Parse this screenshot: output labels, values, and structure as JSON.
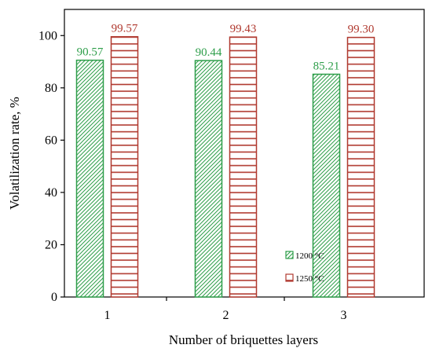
{
  "chart_data": {
    "type": "bar",
    "title": "",
    "xlabel": "Number of briquettes layers",
    "ylabel": "Volatilization rate, %",
    "categories": [
      "1",
      "2",
      "3"
    ],
    "ylim": [
      0,
      110
    ],
    "yticks": [
      0,
      20,
      40,
      60,
      80,
      100
    ],
    "grid": false,
    "legend_position": "lower-right",
    "series": [
      {
        "name": "1200 °C",
        "values": [
          90.57,
          90.44,
          85.21
        ],
        "labels": [
          "90.57",
          "90.44",
          "85.21"
        ],
        "color": "#2e9e4a",
        "label_color": "#2e9e4a",
        "pattern": "diagonal-hatch"
      },
      {
        "name": "1250 °C",
        "values": [
          99.57,
          99.43,
          99.3
        ],
        "labels": [
          "99.57",
          "99.43",
          "99.30"
        ],
        "color": "#b0392f",
        "label_color": "#b0392f",
        "pattern": "horizontal-lines"
      }
    ]
  }
}
